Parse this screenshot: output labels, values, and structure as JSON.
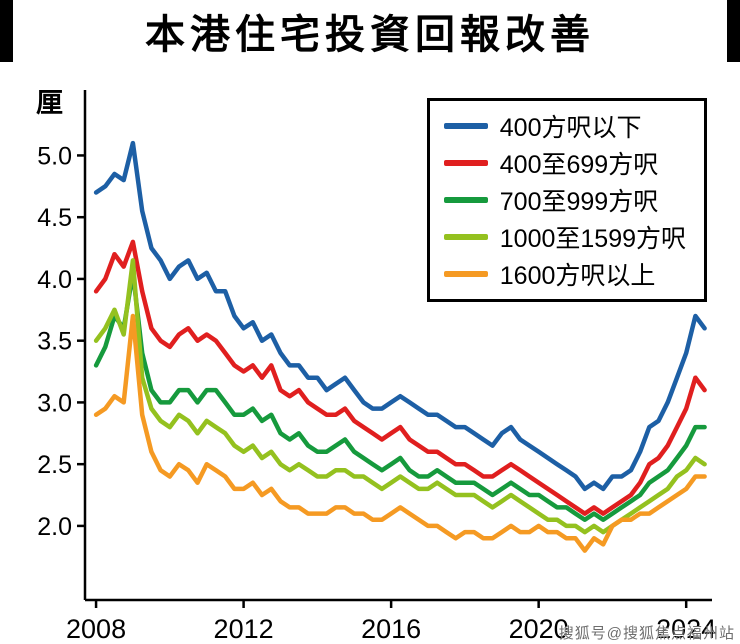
{
  "watermark": {
    "text": "搜狐号@搜狐焦点福州站"
  },
  "chart_data": {
    "type": "line",
    "title": "本港住宅投資回報改善",
    "xlabel": "",
    "ylabel": "厘",
    "grid": false,
    "legend_position": "top-right",
    "xlim": [
      2007.7,
      2024.7
    ],
    "ylim": [
      1.4,
      5.53
    ],
    "x_ticks": [
      2008,
      2012,
      2016,
      2020,
      2024
    ],
    "y_ticks": [
      2.0,
      2.5,
      3.0,
      3.5,
      4.0,
      4.5,
      5.0
    ],
    "x": [
      2008,
      2008.25,
      2008.5,
      2008.75,
      2009,
      2009.25,
      2009.5,
      2009.75,
      2010,
      2010.25,
      2010.5,
      2010.75,
      2011,
      2011.25,
      2011.5,
      2011.75,
      2012,
      2012.25,
      2012.5,
      2012.75,
      2013,
      2013.25,
      2013.5,
      2013.75,
      2014,
      2014.25,
      2014.5,
      2014.75,
      2015,
      2015.25,
      2015.5,
      2015.75,
      2016,
      2016.25,
      2016.5,
      2016.75,
      2017,
      2017.25,
      2017.5,
      2017.75,
      2018,
      2018.25,
      2018.5,
      2018.75,
      2019,
      2019.25,
      2019.5,
      2019.75,
      2020,
      2020.25,
      2020.5,
      2020.75,
      2021,
      2021.25,
      2021.5,
      2021.75,
      2022,
      2022.25,
      2022.5,
      2022.75,
      2023,
      2023.25,
      2023.5,
      2023.75,
      2024,
      2024.25,
      2024.5
    ],
    "series": [
      {
        "name": "400方呎以下",
        "color": "#1d5fa5",
        "values": [
          4.7,
          4.75,
          4.85,
          4.8,
          5.1,
          4.55,
          4.25,
          4.15,
          4.0,
          4.1,
          4.15,
          4.0,
          4.05,
          3.9,
          3.9,
          3.7,
          3.6,
          3.65,
          3.5,
          3.55,
          3.4,
          3.3,
          3.3,
          3.2,
          3.2,
          3.1,
          3.15,
          3.2,
          3.1,
          3.0,
          2.95,
          2.95,
          3.0,
          3.05,
          3.0,
          2.95,
          2.9,
          2.9,
          2.85,
          2.8,
          2.8,
          2.75,
          2.7,
          2.65,
          2.75,
          2.8,
          2.7,
          2.65,
          2.6,
          2.55,
          2.5,
          2.45,
          2.4,
          2.3,
          2.35,
          2.3,
          2.4,
          2.4,
          2.45,
          2.6,
          2.8,
          2.85,
          3.0,
          3.2,
          3.4,
          3.7,
          3.6
        ]
      },
      {
        "name": "400至699方呎",
        "color": "#e01f1f",
        "values": [
          3.9,
          4.0,
          4.2,
          4.1,
          4.3,
          3.9,
          3.6,
          3.5,
          3.45,
          3.55,
          3.6,
          3.5,
          3.55,
          3.5,
          3.4,
          3.3,
          3.25,
          3.3,
          3.2,
          3.3,
          3.1,
          3.05,
          3.1,
          3.0,
          2.95,
          2.9,
          2.9,
          2.95,
          2.85,
          2.8,
          2.75,
          2.7,
          2.75,
          2.8,
          2.7,
          2.65,
          2.6,
          2.6,
          2.55,
          2.5,
          2.5,
          2.45,
          2.4,
          2.4,
          2.45,
          2.5,
          2.45,
          2.4,
          2.35,
          2.3,
          2.25,
          2.2,
          2.15,
          2.1,
          2.15,
          2.1,
          2.15,
          2.2,
          2.25,
          2.35,
          2.5,
          2.55,
          2.65,
          2.8,
          2.95,
          3.2,
          3.1
        ]
      },
      {
        "name": "700至999方呎",
        "color": "#169a3d",
        "values": [
          3.3,
          3.45,
          3.7,
          3.6,
          4.05,
          3.4,
          3.1,
          3.0,
          3.0,
          3.1,
          3.1,
          3.0,
          3.1,
          3.1,
          3.0,
          2.9,
          2.9,
          2.95,
          2.85,
          2.9,
          2.75,
          2.7,
          2.75,
          2.65,
          2.6,
          2.6,
          2.65,
          2.7,
          2.6,
          2.55,
          2.5,
          2.45,
          2.5,
          2.55,
          2.45,
          2.4,
          2.4,
          2.45,
          2.4,
          2.35,
          2.35,
          2.35,
          2.3,
          2.25,
          2.3,
          2.35,
          2.3,
          2.25,
          2.25,
          2.2,
          2.15,
          2.15,
          2.1,
          2.05,
          2.1,
          2.05,
          2.1,
          2.15,
          2.2,
          2.25,
          2.35,
          2.4,
          2.45,
          2.55,
          2.65,
          2.8,
          2.8
        ]
      },
      {
        "name": "1000至1599方呎",
        "color": "#94c11f",
        "values": [
          3.5,
          3.6,
          3.75,
          3.55,
          4.15,
          3.2,
          2.95,
          2.85,
          2.8,
          2.9,
          2.85,
          2.75,
          2.85,
          2.8,
          2.75,
          2.65,
          2.6,
          2.65,
          2.55,
          2.6,
          2.5,
          2.45,
          2.5,
          2.45,
          2.4,
          2.4,
          2.45,
          2.45,
          2.4,
          2.4,
          2.35,
          2.3,
          2.35,
          2.4,
          2.35,
          2.3,
          2.3,
          2.35,
          2.3,
          2.25,
          2.25,
          2.25,
          2.2,
          2.15,
          2.2,
          2.25,
          2.2,
          2.15,
          2.1,
          2.05,
          2.05,
          2.0,
          2.0,
          1.95,
          2.0,
          1.95,
          2.0,
          2.05,
          2.1,
          2.15,
          2.2,
          2.25,
          2.3,
          2.4,
          2.45,
          2.55,
          2.5
        ]
      },
      {
        "name": "1600方呎以上",
        "color": "#f59a23",
        "values": [
          2.9,
          2.95,
          3.05,
          3.0,
          3.7,
          2.9,
          2.6,
          2.45,
          2.4,
          2.5,
          2.45,
          2.35,
          2.5,
          2.45,
          2.4,
          2.3,
          2.3,
          2.35,
          2.25,
          2.3,
          2.2,
          2.15,
          2.15,
          2.1,
          2.1,
          2.1,
          2.15,
          2.15,
          2.1,
          2.1,
          2.05,
          2.05,
          2.1,
          2.15,
          2.1,
          2.05,
          2.0,
          2.0,
          1.95,
          1.9,
          1.95,
          1.95,
          1.9,
          1.9,
          1.95,
          2.0,
          1.95,
          1.95,
          2.0,
          1.95,
          1.95,
          1.9,
          1.9,
          1.8,
          1.9,
          1.85,
          2.0,
          2.05,
          2.05,
          2.1,
          2.1,
          2.15,
          2.2,
          2.25,
          2.3,
          2.4,
          2.4
        ]
      }
    ]
  }
}
